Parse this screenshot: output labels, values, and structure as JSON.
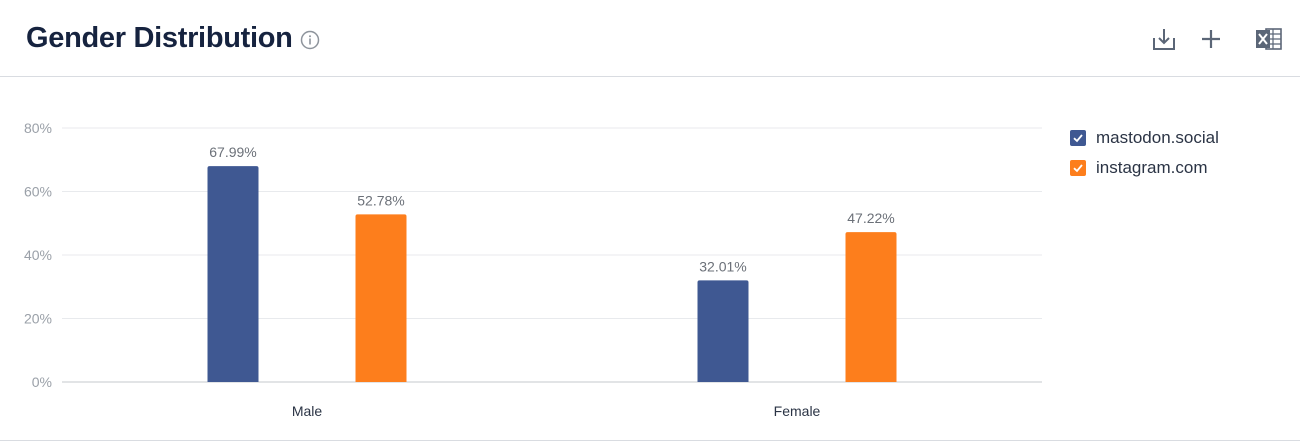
{
  "header": {
    "title": "Gender Distribution",
    "icons": {
      "info": "info-icon",
      "download": "download-icon",
      "add": "plus-icon",
      "excel": "excel-icon"
    }
  },
  "colors": {
    "mastodon": "#3f5892",
    "instagram": "#fd7e1c",
    "grid": "#e8eaed",
    "axis": "#c6c9ce",
    "tick": "#9aa0a8",
    "datalabel": "#6b7078"
  },
  "chart_data": {
    "type": "bar",
    "categories": [
      "Male",
      "Female"
    ],
    "series": [
      {
        "name": "mastodon.social",
        "values": [
          67.99,
          32.01
        ],
        "labels": [
          "67.99%",
          "32.01%"
        ]
      },
      {
        "name": "instagram.com",
        "values": [
          52.78,
          47.22
        ],
        "labels": [
          "52.78%",
          "47.22%"
        ]
      }
    ],
    "ylim": [
      0,
      80
    ],
    "yticks": [
      {
        "value": 0,
        "label": "0%"
      },
      {
        "value": 20,
        "label": "20%"
      },
      {
        "value": 40,
        "label": "40%"
      },
      {
        "value": 60,
        "label": "60%"
      },
      {
        "value": 80,
        "label": "80%"
      }
    ],
    "grid": true,
    "legend_position": "right"
  }
}
